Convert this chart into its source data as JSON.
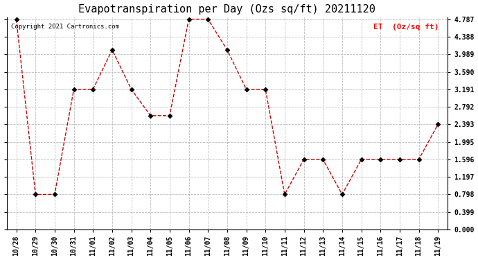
{
  "title": "Evapotranspiration per Day (Ozs sq/ft) 20211120",
  "copyright_text": "Copyright 2021 Cartronics.com",
  "legend_label": "ET  (0z/sq ft)",
  "x_labels": [
    "10/28",
    "10/29",
    "10/30",
    "10/31",
    "11/01",
    "11/02",
    "11/03",
    "11/04",
    "11/05",
    "11/06",
    "11/07",
    "11/08",
    "11/09",
    "11/10",
    "11/11",
    "11/12",
    "11/13",
    "11/14",
    "11/15",
    "11/16",
    "11/17",
    "11/18",
    "11/19"
  ],
  "y_values": [
    4.787,
    0.798,
    0.798,
    3.191,
    3.191,
    4.089,
    3.191,
    2.592,
    2.592,
    4.787,
    4.787,
    4.089,
    3.191,
    3.191,
    0.798,
    1.596,
    1.596,
    0.798,
    1.596,
    1.596,
    1.596,
    1.596,
    2.393
  ],
  "yticks": [
    0.0,
    0.399,
    0.798,
    1.197,
    1.596,
    1.995,
    2.393,
    2.792,
    3.191,
    3.59,
    3.989,
    4.388,
    4.787
  ],
  "line_color": "#cc0000",
  "marker_color": "black",
  "grid_color": "#bbbbbb",
  "background_color": "white",
  "title_fontsize": 11,
  "tick_fontsize": 7,
  "legend_color": "red",
  "copyright_color": "black",
  "copyright_fontsize": 6.5
}
